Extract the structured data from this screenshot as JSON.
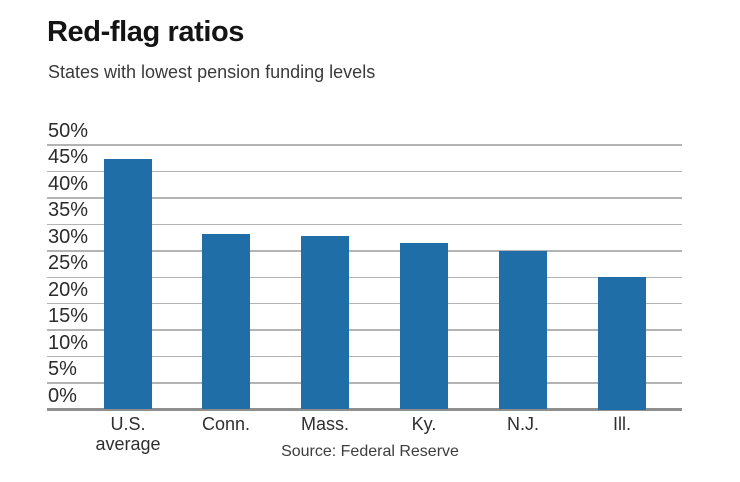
{
  "chart_data": {
    "type": "bar",
    "title": "Red-flag ratios",
    "subtitle": "States with lowest pension funding levels",
    "source": "Source: Federal Reserve",
    "categories": [
      "U.S. average",
      "Conn.",
      "Mass.",
      "Ky.",
      "N.J.",
      "Ill."
    ],
    "category_display": [
      "U.S.\naverage",
      "Conn.",
      "Mass.",
      "Ky.",
      "N.J.",
      "Ill."
    ],
    "category_slugs": [
      "us-average",
      "conn",
      "mass",
      "ky",
      "nj",
      "ill"
    ],
    "values": [
      47.4,
      33.2,
      32.8,
      31.4,
      30.0,
      25.0
    ],
    "unit": "%",
    "xlabel": "",
    "ylabel": "",
    "ylim": [
      0,
      50
    ],
    "yticks": [
      {
        "value": 0,
        "label": "0%"
      },
      {
        "value": 5,
        "label": "5%"
      },
      {
        "value": 10,
        "label": "10%"
      },
      {
        "value": 15,
        "label": "15%"
      },
      {
        "value": 20,
        "label": "20%"
      },
      {
        "value": 25,
        "label": "25%"
      },
      {
        "value": 30,
        "label": "30%"
      },
      {
        "value": 35,
        "label": "35%"
      },
      {
        "value": 40,
        "label": "40%"
      },
      {
        "value": 45,
        "label": "45%"
      },
      {
        "value": 50,
        "label": "50%"
      }
    ],
    "grid": true,
    "legend": false,
    "colors": {
      "bar": "#1F6EA7",
      "gridline": "#B3B3B3",
      "axis": "#8F8F8F",
      "title": "#141414",
      "subtitle": "#3A3A3A",
      "tick": "#2B2B2B",
      "category": "#2F2F2F",
      "source": "#3D3D3D",
      "background": "#FFFFFF"
    }
  }
}
